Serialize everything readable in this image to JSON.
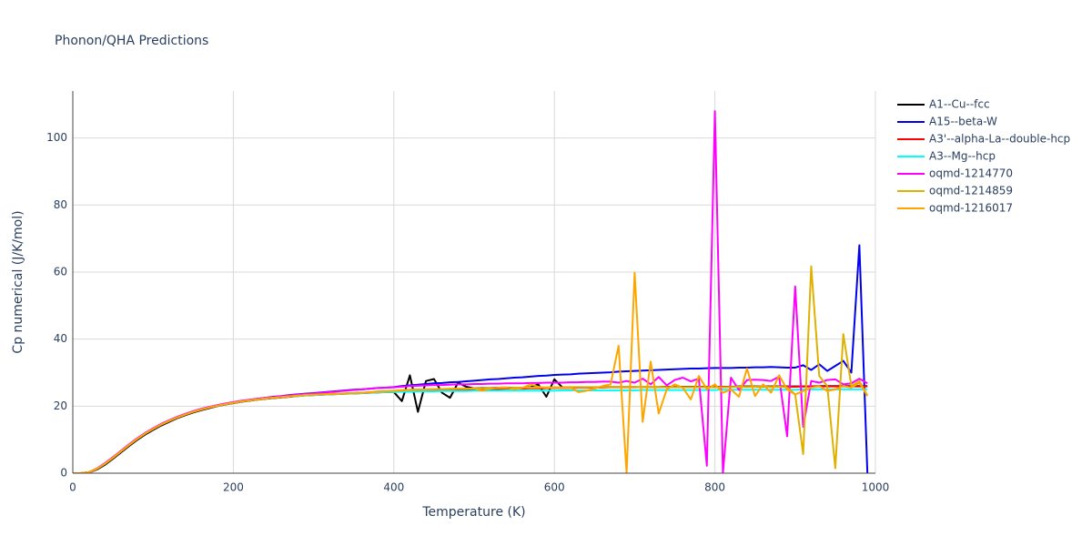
{
  "chart_data": {
    "type": "line",
    "title": "Phonon/QHA Predictions",
    "x_label": "Temperature (K)",
    "y_label": "Cp numerical (J/K/mol)",
    "x": [
      0,
      10,
      20,
      30,
      40,
      50,
      60,
      70,
      80,
      90,
      100,
      110,
      120,
      130,
      140,
      150,
      160,
      170,
      180,
      190,
      200,
      210,
      220,
      230,
      240,
      250,
      260,
      270,
      280,
      290,
      300,
      310,
      320,
      330,
      340,
      350,
      360,
      370,
      380,
      390,
      400,
      410,
      420,
      430,
      440,
      450,
      460,
      470,
      480,
      490,
      500,
      510,
      520,
      530,
      540,
      550,
      560,
      570,
      580,
      590,
      600,
      610,
      620,
      630,
      640,
      650,
      660,
      670,
      680,
      690,
      700,
      710,
      720,
      730,
      740,
      750,
      760,
      770,
      780,
      790,
      800,
      810,
      820,
      830,
      840,
      850,
      860,
      870,
      880,
      890,
      900,
      910,
      920,
      930,
      940,
      950,
      960,
      970,
      980,
      990
    ],
    "xlim": [
      0,
      1000
    ],
    "xticks": [
      0,
      200,
      400,
      600,
      800,
      1000
    ],
    "ylim": [
      0,
      114
    ],
    "yticks": [
      0,
      20,
      40,
      60,
      80,
      100
    ],
    "grid": true,
    "legend": "right",
    "series": [
      {
        "name": "A1--Cu--fcc",
        "color": "#000000",
        "values": [
          0,
          0,
          0.2,
          1.1,
          2.5,
          4.3,
          6.2,
          8.1,
          9.9,
          11.5,
          12.9,
          14.2,
          15.3,
          16.4,
          17.3,
          18.1,
          18.8,
          19.4,
          20.0,
          20.5,
          20.9,
          21.3,
          21.6,
          21.9,
          22.2,
          22.4,
          22.6,
          22.8,
          23.0,
          23.2,
          23.3,
          23.4,
          23.5,
          23.6,
          23.7,
          23.8,
          23.9,
          24.0,
          24.1,
          24.2,
          24.2,
          21.5,
          29.2,
          18.3,
          27.5,
          28.1,
          24,
          22.5,
          27,
          25.8,
          25.3,
          25.4,
          25.4,
          25.5,
          25.5,
          25.5,
          25.5,
          25.6,
          26.5,
          22.8,
          28,
          25.6,
          25.6,
          25.6,
          25.6,
          25.6,
          25.7,
          25.7,
          25.7,
          25.7,
          25.7,
          25.7,
          25.7,
          25.7,
          25.8,
          25.8,
          25.8,
          25.8,
          25.8,
          25.8,
          25.8,
          25.8,
          25.8,
          25.9,
          25.9,
          25.9,
          25.9,
          25.9,
          25.9,
          25.9,
          25.9,
          25.9,
          25.9,
          26,
          26,
          26,
          26,
          26,
          26,
          26
        ]
      },
      {
        "name": "A15--beta-W",
        "color": "#0000ee",
        "values": [
          0,
          0,
          0.3,
          1.3,
          2.8,
          4.6,
          6.5,
          8.4,
          10.2,
          11.8,
          13.2,
          14.5,
          15.6,
          16.6,
          17.5,
          18.3,
          19.0,
          19.6,
          20.1,
          20.6,
          21.0,
          21.5,
          21.9,
          22.2,
          22.5,
          22.8,
          23.0,
          23.3,
          23.5,
          23.7,
          23.9,
          24.1,
          24.3,
          24.5,
          24.7,
          24.9,
          25.0,
          25.2,
          25.4,
          25.5,
          25.7,
          26.0,
          26.2,
          26.4,
          26.6,
          26.8,
          26.9,
          27.1,
          27.2,
          27.4,
          27.6,
          27.8,
          28.0,
          28.1,
          28.3,
          28.5,
          28.6,
          28.8,
          29.0,
          29.1,
          29.3,
          29.4,
          29.5,
          29.7,
          29.8,
          29.9,
          30.0,
          30.1,
          30.3,
          30.4,
          30.5,
          30.6,
          30.7,
          30.8,
          30.9,
          31.0,
          31.1,
          31.2,
          31.2,
          31.3,
          31.4,
          31.4,
          31.4,
          31.5,
          31.5,
          31.6,
          31.6,
          31.7,
          31.6,
          31.5,
          31.5,
          32.2,
          30.8,
          32.5,
          30.5,
          32,
          33.5,
          30,
          68,
          0
        ]
      },
      {
        "name": "A3'--alpha-La--double-hcp",
        "color": "#ff0000",
        "values": [
          0,
          0,
          0.3,
          1.3,
          2.8,
          4.6,
          6.5,
          8.4,
          10.2,
          11.8,
          13.2,
          14.5,
          15.6,
          16.6,
          17.5,
          18.3,
          19.0,
          19.6,
          20.1,
          20.6,
          21.0,
          21.4,
          21.7,
          22.0,
          22.3,
          22.5,
          22.7,
          22.9,
          23.1,
          23.3,
          23.4,
          23.5,
          23.6,
          23.7,
          23.8,
          23.9,
          24.0,
          24.1,
          24.2,
          24.3,
          24.3,
          24.4,
          24.5,
          24.6,
          24.6,
          24.7,
          24.8,
          24.8,
          24.9,
          24.9,
          25.0,
          25.0,
          25.1,
          25.1,
          25.2,
          25.2,
          25.2,
          25.3,
          25.3,
          25.3,
          25.4,
          25.4,
          25.4,
          25.5,
          25.5,
          25.5,
          25.5,
          25.6,
          25.6,
          25.6,
          25.6,
          25.7,
          25.7,
          25.7,
          25.7,
          25.7,
          25.7,
          25.7,
          25.7,
          25.7,
          25.7,
          25.8,
          25.8,
          25.8,
          25.8,
          25.8,
          25.8,
          25.8,
          25.8,
          25.8,
          25.8,
          25.9,
          25.9,
          25.9,
          25.9,
          25.9,
          25.9,
          25.9,
          25.9,
          25.9
        ]
      },
      {
        "name": "A3--Mg--hcp",
        "color": "#00ffff",
        "values": [
          0,
          0,
          0.3,
          1.3,
          2.8,
          4.6,
          6.5,
          8.4,
          10.2,
          11.8,
          13.2,
          14.5,
          15.6,
          16.6,
          17.5,
          18.3,
          19.0,
          19.6,
          20.1,
          20.6,
          21.0,
          21.4,
          21.7,
          22.0,
          22.3,
          22.5,
          22.7,
          22.9,
          23.0,
          23.2,
          23.3,
          23.4,
          23.5,
          23.6,
          23.7,
          23.8,
          23.9,
          24.0,
          24.1,
          24.2,
          24.2,
          24.3,
          24.3,
          24.4,
          24.4,
          24.4,
          24.5,
          24.5,
          24.5,
          24.5,
          24.6,
          24.6,
          24.6,
          24.6,
          24.6,
          24.6,
          24.6,
          24.6,
          24.6,
          24.6,
          24.6,
          24.7,
          24.7,
          24.7,
          24.7,
          24.7,
          24.7,
          24.7,
          24.7,
          24.7,
          24.7,
          24.8,
          24.8,
          24.8,
          24.8,
          24.8,
          24.8,
          24.8,
          24.8,
          24.8,
          24.8,
          24.9,
          24.9,
          24.9,
          24.9,
          24.9,
          24.9,
          24.9,
          24.9,
          24.9,
          24.9,
          25.0,
          25.0,
          25.0,
          25.0,
          25.0,
          25.0,
          25.0,
          25.0,
          25.0
        ]
      },
      {
        "name": "oqmd-1214770",
        "color": "#ff00ff",
        "values": [
          0,
          0,
          0.3,
          1.4,
          3.0,
          4.8,
          6.7,
          8.6,
          10.4,
          12.0,
          13.4,
          14.7,
          15.8,
          16.8,
          17.7,
          18.5,
          19.2,
          19.8,
          20.3,
          20.8,
          21.2,
          21.6,
          21.9,
          22.2,
          22.5,
          22.7,
          23.0,
          23.2,
          23.4,
          23.6,
          23.8,
          24.0,
          24.2,
          24.4,
          24.6,
          24.8,
          25.0,
          25.2,
          25.4,
          25.5,
          25.6,
          25.8,
          26.0,
          26.1,
          26.2,
          26.3,
          26.3,
          26.4,
          26.5,
          26.5,
          26.6,
          26.6,
          26.7,
          26.7,
          26.8,
          26.8,
          26.8,
          26.9,
          26.9,
          27.0,
          27.0,
          27.0,
          27.1,
          27.1,
          27.2,
          27.2,
          27.3,
          27.3,
          27.0,
          27.5,
          27.0,
          28.2,
          26.5,
          28.7,
          26.2,
          27.8,
          28.5,
          27.4,
          28.2,
          2.2,
          108,
          0,
          28.5,
          24.8,
          27.8,
          27.9,
          27.8,
          27.5,
          28.8,
          11,
          55.7,
          13.8,
          27.5,
          27,
          27.8,
          28,
          26.5,
          26.8,
          28.2,
          26.8
        ]
      },
      {
        "name": "oqmd-1214859",
        "color": "#e0b000",
        "values": [
          0,
          0,
          0.3,
          1.3,
          2.8,
          4.6,
          6.5,
          8.4,
          10.2,
          11.8,
          13.2,
          14.5,
          15.6,
          16.6,
          17.5,
          18.3,
          19.0,
          19.6,
          20.1,
          20.6,
          21.0,
          21.4,
          21.7,
          22.0,
          22.3,
          22.5,
          22.7,
          22.9,
          23.1,
          23.3,
          23.4,
          23.5,
          23.6,
          23.7,
          23.8,
          23.9,
          24.0,
          24.2,
          24.4,
          24.5,
          24.6,
          24.8,
          24.9,
          25.0,
          25.0,
          25.1,
          25.1,
          25.2,
          25.2,
          25.2,
          25.3,
          25.3,
          25.4,
          25.4,
          25.4,
          25.5,
          25.5,
          25.5,
          25.5,
          25.6,
          25.6,
          25.6,
          25.6,
          25.6,
          25.6,
          25.6,
          25.6,
          25.6,
          25.6,
          25.6,
          25.6,
          25.7,
          25.7,
          25.7,
          25.7,
          25.7,
          25.7,
          25.7,
          25.7,
          25.7,
          25.7,
          25.6,
          25.7,
          25.8,
          25.7,
          25.8,
          25.9,
          25.7,
          25.8,
          25.6,
          23.5,
          5.7,
          61.7,
          29,
          26,
          1.5,
          41.5,
          26,
          27.5,
          23.2
        ]
      },
      {
        "name": "oqmd-1216017",
        "color": "#ffa500",
        "values": [
          0,
          0,
          0.3,
          1.3,
          2.8,
          4.6,
          6.5,
          8.4,
          10.2,
          11.8,
          13.2,
          14.5,
          15.6,
          16.6,
          17.5,
          18.3,
          19.0,
          19.6,
          20.1,
          20.6,
          21.0,
          21.4,
          21.7,
          22.0,
          22.3,
          22.5,
          22.7,
          22.9,
          23.1,
          23.3,
          23.4,
          23.5,
          23.6,
          23.7,
          23.8,
          23.9,
          24.0,
          24.1,
          24.3,
          24.4,
          24.5,
          24.7,
          24.8,
          24.9,
          25.0,
          25.0,
          25.1,
          25.1,
          25.2,
          25.2,
          25.3,
          24.6,
          25.2,
          25.5,
          25.6,
          25.0,
          25.4,
          26.5,
          25.8,
          25.4,
          25.5,
          25.5,
          25.5,
          24.2,
          24.6,
          25.2,
          26.0,
          26.5,
          38,
          0,
          59.8,
          15.3,
          33.3,
          17.8,
          25.0,
          26.5,
          25.5,
          22.0,
          29.0,
          25.0,
          26.5,
          24.0,
          25.0,
          22.8,
          31.2,
          23.0,
          26.5,
          24.0,
          29.2,
          25.0,
          23.5,
          24.5,
          25.5,
          26.0,
          24.5,
          25.0,
          26.0,
          25.5,
          27.0,
          23.0
        ]
      }
    ]
  }
}
